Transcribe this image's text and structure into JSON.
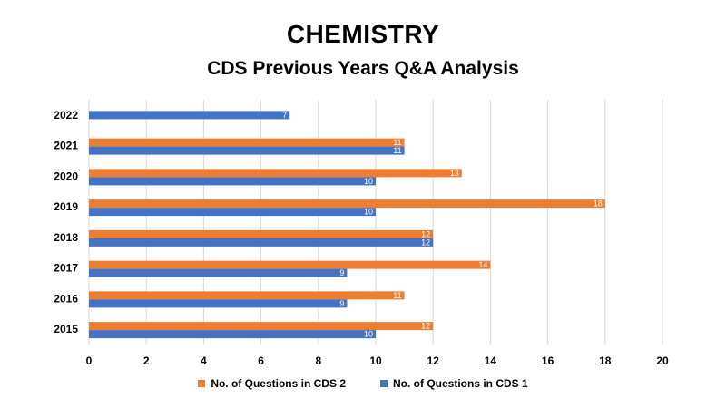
{
  "colors": {
    "cds2": "#ed7d31",
    "cds1": "#4472c4",
    "grid": "#d9d9d9"
  },
  "chart_data": {
    "type": "bar",
    "orientation": "horizontal",
    "title": "CHEMISTRY",
    "subtitle": "CDS Previous Years Q&A Analysis",
    "categories": [
      "2022",
      "2021",
      "2020",
      "2019",
      "2018",
      "2017",
      "2016",
      "2015"
    ],
    "series": [
      {
        "name": "No. of Questions in CDS 2",
        "values": [
          null,
          11,
          13,
          18,
          12,
          14,
          11,
          12
        ]
      },
      {
        "name": "No. of Questions in CDS 1",
        "values": [
          7,
          11,
          10,
          10,
          12,
          9,
          9,
          10
        ]
      }
    ],
    "xlim": [
      0,
      20
    ],
    "xticks": [
      "0",
      "2",
      "4",
      "6",
      "8",
      "10",
      "12",
      "14",
      "16",
      "18",
      "20"
    ],
    "grid": true,
    "legend_position": "bottom",
    "data_labels": true
  }
}
